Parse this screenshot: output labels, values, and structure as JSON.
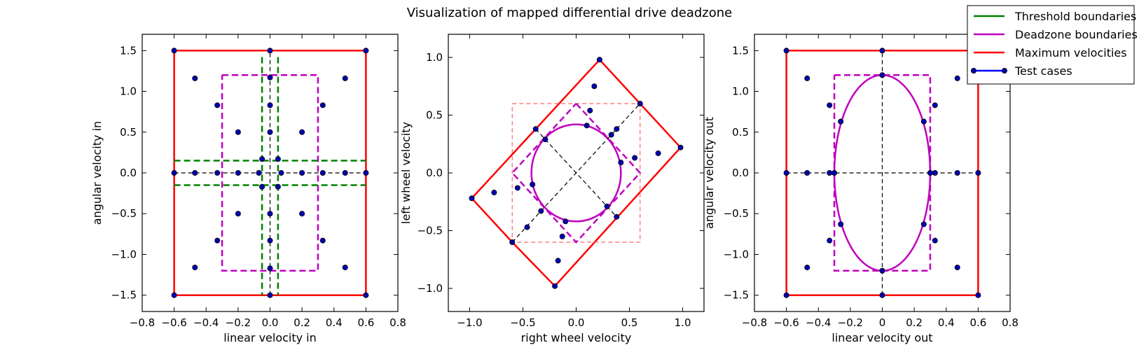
{
  "title": "Visualization of mapped differential drive deadzone",
  "legend": {
    "placement": "top-right",
    "entries": [
      {
        "label": "Threshold boundaries",
        "color": "#008000",
        "style": "line"
      },
      {
        "label": "Deadzone boundaries",
        "color": "#bf00bf",
        "style": "line"
      },
      {
        "label": "Maximum velocities",
        "color": "#ff0000",
        "style": "line"
      },
      {
        "label": "Test cases",
        "color": "#0000ff",
        "style": "line-marker"
      }
    ]
  },
  "colors": {
    "threshold": "#008000",
    "deadzone": "#bf00bf",
    "maximum": "#ff0000",
    "points": "#0000b4",
    "guides": "#000000"
  },
  "chart_data": [
    {
      "type": "scatter",
      "xlabel": "linear velocity in",
      "ylabel": "angular velocity in",
      "xlim": [
        -0.8,
        0.8
      ],
      "ylim": [
        -1.7,
        1.7
      ],
      "xticks": [
        -0.8,
        -0.6,
        -0.4,
        -0.2,
        0.0,
        0.2,
        0.4,
        0.6,
        0.8
      ],
      "yticks": [
        -1.5,
        -1.0,
        -0.5,
        0.0,
        0.5,
        1.0,
        1.5
      ],
      "xtick_labels": [
        "−0.8",
        "−0.6",
        "−0.4",
        "−0.2",
        "0.0",
        "0.2",
        "0.4",
        "0.6",
        "0.8"
      ],
      "ytick_labels": [
        "−1.5",
        "−1.0",
        "−0.5",
        "0.0",
        "0.5",
        "1.0",
        "1.5"
      ],
      "grid": false,
      "series": [
        {
          "name": "Maximum velocities",
          "kind": "polyline",
          "style": "solid",
          "color": "#ff0000",
          "x": [
            -0.6,
            0.6,
            0.6,
            -0.6,
            -0.6
          ],
          "y": [
            1.5,
            1.5,
            -1.5,
            -1.5,
            1.5
          ]
        },
        {
          "name": "Deadzone boundaries",
          "kind": "polyline",
          "style": "dashed",
          "color": "#bf00bf",
          "x": [
            -0.3,
            0.3,
            0.3,
            -0.3,
            -0.3
          ],
          "y": [
            1.2,
            1.2,
            -1.2,
            -1.2,
            1.2
          ]
        },
        {
          "name": "Threshold boundaries",
          "kind": "segments",
          "style": "dashed",
          "color": "#008000",
          "segments": [
            [
              [
                -0.05,
                1.42
              ],
              [
                -0.05,
                -1.5
              ]
            ],
            [
              [
                0.05,
                1.42
              ],
              [
                0.05,
                -1.5
              ]
            ],
            [
              [
                -0.6,
                0.15
              ],
              [
                0.6,
                0.15
              ]
            ],
            [
              [
                -0.6,
                -0.15
              ],
              [
                0.6,
                -0.15
              ]
            ]
          ]
        },
        {
          "name": "",
          "kind": "segments",
          "style": "dashed",
          "color": "#000000",
          "segments": [
            [
              [
                -0.6,
                0.0
              ],
              [
                0.6,
                0.0
              ]
            ],
            [
              [
                0.0,
                -1.5
              ],
              [
                0.0,
                1.5
              ]
            ]
          ]
        },
        {
          "name": "Test cases",
          "kind": "points",
          "x": [
            -0.6,
            0.0,
            0.6,
            -0.47,
            0.47,
            -0.33,
            0.33,
            -0.2,
            0.2,
            0.0,
            0.0,
            0.0,
            -0.05,
            0.05,
            -0.6,
            -0.47,
            -0.33,
            -0.2,
            -0.07,
            0.07,
            0.2,
            0.33,
            0.47,
            0.6,
            -0.05,
            0.05,
            0.0,
            0.0,
            -0.2,
            0.2,
            -0.33,
            0.33,
            0.0,
            -0.47,
            0.47,
            0.0,
            -0.6,
            0.6
          ],
          "y": [
            1.5,
            1.5,
            1.5,
            1.16,
            1.16,
            0.83,
            0.83,
            0.5,
            0.5,
            1.17,
            0.83,
            0.5,
            0.17,
            0.17,
            0.0,
            0.0,
            0.0,
            0.0,
            0.0,
            0.0,
            0.0,
            0.0,
            0.0,
            0.0,
            -0.17,
            -0.17,
            -0.5,
            -0.83,
            -0.5,
            -0.5,
            -0.83,
            -0.83,
            -1.17,
            -1.16,
            -1.16,
            -1.5,
            -1.5,
            -1.5
          ]
        }
      ]
    },
    {
      "type": "scatter",
      "xlabel": "right wheel velocity",
      "ylabel": "left wheel velocity",
      "xlim": [
        -1.2,
        1.2
      ],
      "ylim": [
        -1.2,
        1.2
      ],
      "xticks": [
        -1.0,
        -0.5,
        0.0,
        0.5,
        1.0
      ],
      "yticks": [
        -1.0,
        -0.5,
        0.0,
        0.5,
        1.0
      ],
      "xtick_labels": [
        "−1.0",
        "−0.5",
        "0.0",
        "0.5",
        "1.0"
      ],
      "ytick_labels": [
        "−1.0",
        "−0.5",
        "0.0",
        "0.5",
        "1.0"
      ],
      "grid": false,
      "series": [
        {
          "name": "Maximum velocities",
          "kind": "polyline",
          "style": "solid",
          "color": "#ff0000",
          "x": [
            0.22,
            0.6,
            0.98,
            -0.2,
            -0.6,
            -0.98,
            0.22
          ],
          "y": [
            0.98,
            0.6,
            0.22,
            -0.98,
            -0.6,
            -0.22,
            0.98
          ]
        },
        {
          "name": "",
          "kind": "polyline",
          "style": "dashed-thin",
          "color": "#ff6666",
          "x": [
            -0.6,
            0.6,
            0.6,
            -0.6,
            -0.6
          ],
          "y": [
            0.6,
            0.6,
            -0.6,
            -0.6,
            0.6
          ]
        },
        {
          "name": "Deadzone boundaries",
          "kind": "polyline",
          "style": "dashed",
          "color": "#bf00bf",
          "x": [
            0.0,
            0.6,
            0.0,
            -0.6,
            0.0
          ],
          "y": [
            0.6,
            0.0,
            -0.6,
            0.0,
            0.6
          ]
        },
        {
          "name": "Deadzone boundaries",
          "kind": "ellipse",
          "style": "solid",
          "color": "#bf00bf",
          "cx": 0.0,
          "cy": 0.0,
          "rx": 0.42,
          "ry": 0.42
        },
        {
          "name": "",
          "kind": "segments",
          "style": "dashed",
          "color": "#000000",
          "segments": [
            [
              [
                -0.6,
                -0.6
              ],
              [
                0.6,
                0.6
              ]
            ],
            [
              [
                -0.38,
                0.38
              ],
              [
                0.38,
                -0.38
              ]
            ]
          ]
        },
        {
          "name": "Test cases",
          "kind": "points",
          "x": [
            0.22,
            0.6,
            0.98,
            0.17,
            0.77,
            0.13,
            0.55,
            -0.38,
            0.38,
            -0.29,
            0.33,
            0.1,
            -0.98,
            -0.77,
            -0.55,
            -0.6,
            -0.46,
            -0.33,
            -0.13,
            -0.17,
            -0.41,
            0.42,
            -0.2,
            0.29,
            0.38,
            -0.1
          ],
          "y": [
            0.98,
            0.6,
            0.22,
            0.75,
            0.17,
            0.54,
            0.13,
            0.38,
            -0.38,
            0.29,
            0.33,
            0.41,
            -0.22,
            -0.17,
            -0.13,
            -0.6,
            -0.47,
            -0.33,
            -0.55,
            -0.76,
            -0.1,
            0.09,
            -0.98,
            -0.29,
            0.38,
            -0.42
          ]
        }
      ]
    },
    {
      "type": "scatter",
      "xlabel": "linear velocity out",
      "ylabel": "angular velocity out",
      "xlim": [
        -0.8,
        0.8
      ],
      "ylim": [
        -1.7,
        1.7
      ],
      "xticks": [
        -0.8,
        -0.6,
        -0.4,
        -0.2,
        0.0,
        0.2,
        0.4,
        0.6,
        0.8
      ],
      "yticks": [
        -1.5,
        -1.0,
        -0.5,
        0.0,
        0.5,
        1.0,
        1.5
      ],
      "xtick_labels": [
        "−0.8",
        "−0.6",
        "−0.4",
        "−0.2",
        "0",
        "0.2",
        "0.4",
        "0.6",
        "0.8"
      ],
      "ytick_labels": [
        "−1.5",
        "−1.0",
        "−0.5",
        "0.0",
        "0.5",
        "1.0",
        "1.5"
      ],
      "grid": false,
      "series": [
        {
          "name": "Maximum velocities",
          "kind": "polyline",
          "style": "solid",
          "color": "#ff0000",
          "x": [
            -0.6,
            0.6,
            0.6,
            -0.6,
            -0.6
          ],
          "y": [
            1.5,
            1.5,
            -1.5,
            -1.5,
            1.5
          ]
        },
        {
          "name": "Deadzone boundaries",
          "kind": "polyline",
          "style": "dashed",
          "color": "#bf00bf",
          "x": [
            -0.3,
            0.3,
            0.3,
            -0.3,
            -0.3
          ],
          "y": [
            1.2,
            1.2,
            -1.2,
            -1.2,
            1.2
          ]
        },
        {
          "name": "Deadzone boundaries",
          "kind": "ellipse",
          "style": "solid",
          "color": "#bf00bf",
          "cx": 0.0,
          "cy": 0.0,
          "rx": 0.3,
          "ry": 1.2
        },
        {
          "name": "",
          "kind": "segments",
          "style": "dashed",
          "color": "#000000",
          "segments": [
            [
              [
                -0.6,
                0.0
              ],
              [
                0.6,
                0.0
              ]
            ],
            [
              [
                0.0,
                -1.5
              ],
              [
                0.0,
                1.5
              ]
            ]
          ]
        },
        {
          "name": "Test cases",
          "kind": "points",
          "x": [
            -0.6,
            0.0,
            0.6,
            -0.47,
            0.47,
            -0.33,
            0.33,
            -0.26,
            0.26,
            0.0,
            -0.6,
            -0.47,
            -0.33,
            -0.3,
            0.3,
            0.33,
            0.47,
            0.6,
            -0.26,
            0.26,
            -0.33,
            0.33,
            0.0,
            -0.47,
            0.47,
            -0.6,
            0.0,
            0.6
          ],
          "y": [
            1.5,
            1.5,
            1.5,
            1.16,
            1.16,
            0.83,
            0.83,
            0.63,
            0.63,
            1.2,
            0.0,
            0.0,
            0.0,
            0.0,
            0.0,
            0.0,
            0.0,
            0.0,
            -0.63,
            -0.63,
            -0.83,
            -0.83,
            -1.2,
            -1.16,
            -1.16,
            -1.5,
            -1.5,
            -1.5
          ]
        }
      ]
    }
  ]
}
